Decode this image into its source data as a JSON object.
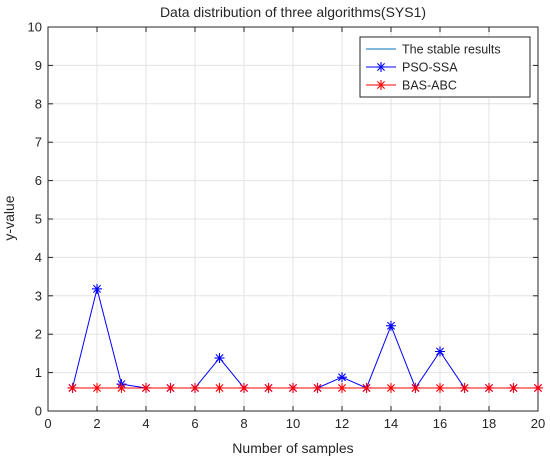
{
  "chart_data": {
    "type": "line",
    "title": "Data distribution of three algorithms(SYS1)",
    "xlabel": "Number of samples",
    "ylabel": "y-value",
    "xlim": [
      0,
      20
    ],
    "ylim": [
      0,
      10
    ],
    "xticks": [
      0,
      2,
      4,
      6,
      8,
      10,
      12,
      14,
      16,
      18,
      20
    ],
    "yticks": [
      0,
      1,
      2,
      3,
      4,
      5,
      6,
      7,
      8,
      9,
      10
    ],
    "grid": true,
    "legend_position": "top-right",
    "x": [
      1,
      2,
      3,
      4,
      5,
      6,
      7,
      8,
      9,
      10,
      11,
      12,
      13,
      14,
      15,
      16,
      17,
      18,
      19,
      20
    ],
    "series": [
      {
        "name": "The stable results",
        "color": "#0072BD",
        "marker": "none",
        "values": [
          0.6,
          0.6,
          0.6,
          0.6,
          0.6,
          0.6,
          0.6,
          0.6,
          0.6,
          0.6,
          0.6,
          0.6,
          0.6,
          0.6,
          0.6,
          0.6,
          0.6,
          0.6,
          0.6,
          0.6
        ]
      },
      {
        "name": "PSO-SSA",
        "color": "#0000FF",
        "marker": "star",
        "values": [
          0.6,
          3.18,
          0.7,
          0.6,
          0.6,
          0.6,
          1.38,
          0.6,
          0.6,
          0.6,
          0.6,
          0.88,
          0.6,
          2.22,
          0.6,
          1.55,
          0.6,
          0.6,
          0.6,
          0.6
        ]
      },
      {
        "name": "BAS-ABC",
        "color": "#FF0000",
        "marker": "star",
        "values": [
          0.6,
          0.6,
          0.6,
          0.6,
          0.6,
          0.6,
          0.6,
          0.6,
          0.6,
          0.6,
          0.6,
          0.6,
          0.6,
          0.6,
          0.6,
          0.6,
          0.6,
          0.6,
          0.6,
          0.6
        ]
      }
    ]
  }
}
